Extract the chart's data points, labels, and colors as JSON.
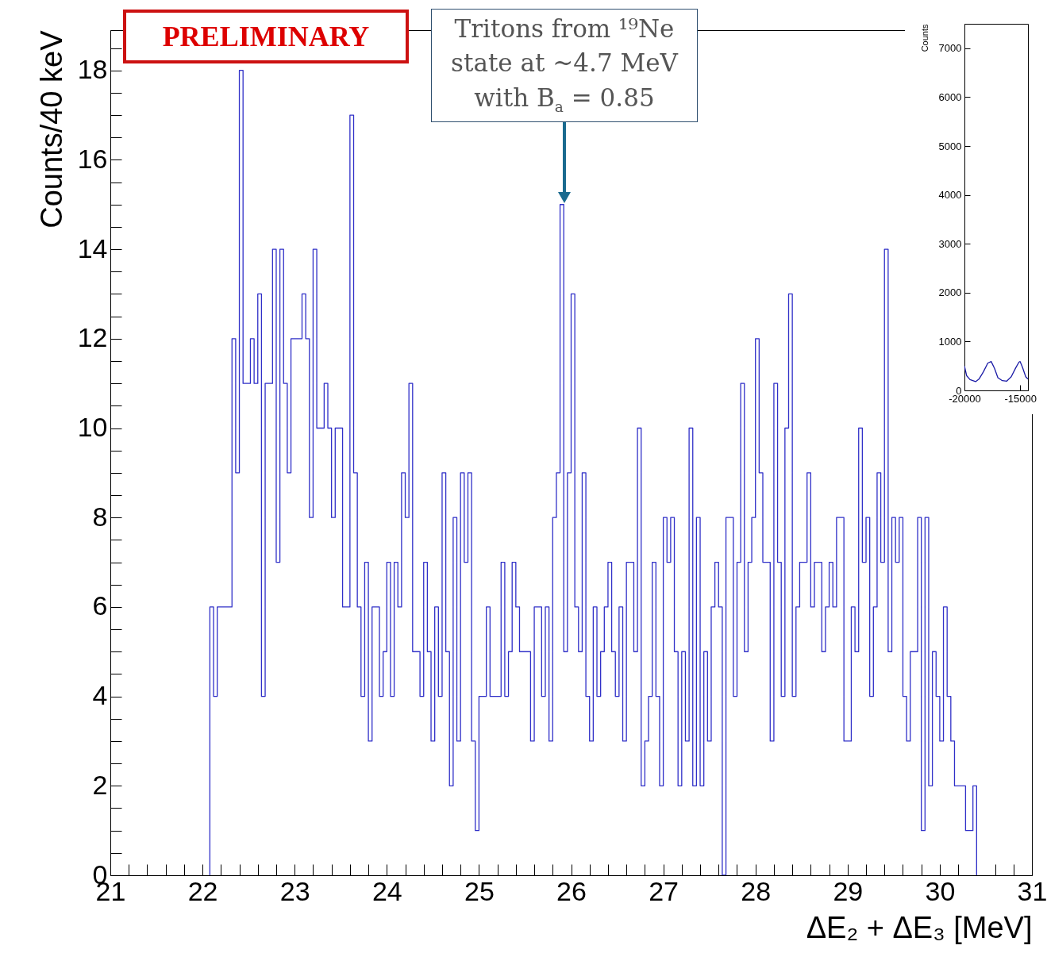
{
  "chart_data": [
    {
      "type": "histogram",
      "color": "#3030c8",
      "xlabel": "ΔE₂ + ΔE₃ [MeV]",
      "ylabel": "Counts/40 keV",
      "bins": [
        22.08,
        22.12,
        22.16,
        22.2,
        22.24,
        22.28,
        22.32,
        22.36,
        22.4,
        22.44,
        22.48,
        22.52,
        22.56,
        22.6,
        22.64,
        22.68,
        22.72,
        22.76,
        22.8,
        22.84,
        22.88,
        22.92,
        22.96,
        23,
        23.04,
        23.08,
        23.12,
        23.16,
        23.2,
        23.24,
        23.28,
        23.32,
        23.36,
        23.4,
        23.44,
        23.48,
        23.52,
        23.56,
        23.6,
        23.64,
        23.68,
        23.72,
        23.76,
        23.8,
        23.84,
        23.88,
        23.92,
        23.96,
        24,
        24.04,
        24.08,
        24.12,
        24.16,
        24.2,
        24.24,
        24.28,
        24.32,
        24.36,
        24.4,
        24.44,
        24.48,
        24.52,
        24.56,
        24.6,
        24.64,
        24.68,
        24.72,
        24.76,
        24.8,
        24.84,
        24.88,
        24.92,
        24.96,
        25,
        25.04,
        25.08,
        25.12,
        25.16,
        25.2,
        25.24,
        25.28,
        25.32,
        25.36,
        25.4,
        25.44,
        25.48,
        25.52,
        25.56,
        25.6,
        25.64,
        25.68,
        25.72,
        25.76,
        25.8,
        25.84,
        25.88,
        25.92,
        25.96,
        26,
        26.04,
        26.08,
        26.12,
        26.16,
        26.2,
        26.24,
        26.28,
        26.32,
        26.36,
        26.4,
        26.44,
        26.48,
        26.52,
        26.56,
        26.6,
        26.64,
        26.68,
        26.72,
        26.76,
        26.8,
        26.84,
        26.88,
        26.92,
        26.96,
        27,
        27.04,
        27.08,
        27.12,
        27.16,
        27.2,
        27.24,
        27.28,
        27.32,
        27.36,
        27.4,
        27.44,
        27.48,
        27.52,
        27.56,
        27.6,
        27.64,
        27.68,
        27.72,
        27.76,
        27.8,
        27.84,
        27.88,
        27.92,
        27.96,
        28,
        28.04,
        28.08,
        28.12,
        28.16,
        28.2,
        28.24,
        28.28,
        28.32,
        28.36,
        28.4,
        28.44,
        28.48,
        28.52,
        28.56,
        28.6,
        28.64,
        28.68,
        28.72,
        28.76,
        28.8,
        28.84,
        28.88,
        28.92,
        28.96,
        29,
        29.04,
        29.08,
        29.12,
        29.16,
        29.2,
        29.24,
        29.28,
        29.32,
        29.36,
        29.4,
        29.44,
        29.48,
        29.52,
        29.56,
        29.6,
        29.64,
        29.68,
        29.72,
        29.76,
        29.8,
        29.84,
        29.88,
        29.92,
        29.96,
        30,
        30.04,
        30.08,
        30.12,
        30.16,
        30.2,
        30.24,
        30.28,
        30.32,
        30.36,
        30.4
      ],
      "values": [
        6,
        4,
        6,
        6,
        6,
        6,
        12,
        9,
        18,
        11,
        11,
        12,
        11,
        13,
        4,
        11,
        11,
        14,
        7,
        14,
        11,
        9,
        12,
        12,
        12,
        13,
        12,
        8,
        14,
        10,
        10,
        11,
        10,
        8,
        10,
        10,
        6,
        6,
        17,
        9,
        6,
        4,
        7,
        3,
        6,
        6,
        4,
        5,
        7,
        4,
        7,
        6,
        9,
        8,
        11,
        5,
        5,
        4,
        7,
        5,
        3,
        6,
        4,
        9,
        5,
        2,
        8,
        3,
        9,
        7,
        9,
        3,
        1,
        4,
        4,
        6,
        4,
        4,
        4,
        7,
        4,
        5,
        7,
        6,
        5,
        5,
        5,
        3,
        6,
        6,
        4,
        6,
        3,
        8,
        9,
        15,
        5,
        9,
        13,
        6,
        5,
        9,
        4,
        3,
        6,
        4,
        5,
        6,
        7,
        5,
        4,
        6,
        3,
        7,
        7,
        5,
        10,
        2,
        3,
        4,
        7,
        4,
        2,
        8,
        7,
        8,
        5,
        2,
        5,
        3,
        10,
        2,
        8,
        2,
        5,
        3,
        6,
        7,
        6,
        0,
        8,
        8,
        4,
        7,
        11,
        5,
        7,
        8,
        12,
        9,
        7,
        7,
        3,
        11,
        7,
        4,
        10,
        13,
        4,
        6,
        7,
        7,
        9,
        6,
        7,
        7,
        5,
        6,
        7,
        6,
        8,
        8,
        3,
        3,
        6,
        5,
        10,
        7,
        8,
        4,
        6,
        9,
        7,
        14,
        5,
        8,
        7,
        8,
        4,
        3,
        5,
        5,
        8,
        1,
        8,
        2,
        5,
        4,
        3,
        6,
        4,
        3,
        2,
        2,
        2,
        1,
        1,
        2
      ],
      "xlim": [
        21,
        31
      ],
      "xticks": [
        21,
        {
          "value": 21.2,
          "label": null
        },
        {
          "value": 21.4,
          "label": null
        },
        {
          "value": 21.6,
          "label": null
        },
        {
          "value": 21.8,
          "label": null
        },
        22,
        {
          "value": 22.2,
          "label": null
        },
        {
          "value": 22.4,
          "label": null
        },
        {
          "value": 22.6,
          "label": null
        },
        {
          "value": 22.8,
          "label": null
        },
        23,
        {
          "value": 23.2,
          "label": null
        },
        {
          "value": 23.4,
          "label": null
        },
        {
          "value": 23.6,
          "label": null
        },
        {
          "value": 23.8,
          "label": null
        },
        24,
        {
          "value": 24.2,
          "label": null
        },
        {
          "value": 24.4,
          "label": null
        },
        {
          "value": 24.6,
          "label": null
        },
        {
          "value": 24.8,
          "label": null
        },
        25,
        {
          "value": 25.2,
          "label": null
        },
        {
          "value": 25.4,
          "label": null
        },
        {
          "value": 25.6,
          "label": null
        },
        {
          "value": 25.8,
          "label": null
        },
        26,
        {
          "value": 26.2,
          "label": null
        },
        {
          "value": 26.4,
          "label": null
        },
        {
          "value": 26.6,
          "label": null
        },
        {
          "value": 26.8,
          "label": null
        },
        27,
        {
          "value": 27.2,
          "label": null
        },
        {
          "value": 27.4,
          "label": null
        },
        {
          "value": 27.6,
          "label": null
        },
        {
          "value": 27.8,
          "label": null
        },
        28,
        {
          "value": 28.2,
          "label": null
        },
        {
          "value": 28.4,
          "label": null
        },
        {
          "value": 28.6,
          "label": null
        },
        {
          "value": 28.8,
          "label": null
        },
        29,
        {
          "value": 29.2,
          "label": null
        },
        {
          "value": 29.4,
          "label": null
        },
        {
          "value": 29.6,
          "label": null
        },
        {
          "value": 29.8,
          "label": null
        },
        30,
        {
          "value": 30.2,
          "label": null
        },
        {
          "value": 30.4,
          "label": null
        },
        {
          "value": 30.6,
          "label": null
        },
        {
          "value": 30.8,
          "label": null
        },
        31
      ],
      "ylim": [
        0,
        18.9
      ],
      "yticks": [
        0,
        {
          "value": 0.5,
          "label": null
        },
        {
          "value": 1,
          "label": null
        },
        {
          "value": 1.5,
          "label": null
        },
        2,
        {
          "value": 2.5,
          "label": null
        },
        {
          "value": 3,
          "label": null
        },
        {
          "value": 3.5,
          "label": null
        },
        4,
        {
          "value": 4.5,
          "label": null
        },
        {
          "value": 5,
          "label": null
        },
        {
          "value": 5.5,
          "label": null
        },
        6,
        {
          "value": 6.5,
          "label": null
        },
        {
          "value": 7,
          "label": null
        },
        {
          "value": 7.5,
          "label": null
        },
        8,
        {
          "value": 8.5,
          "label": null
        },
        {
          "value": 9,
          "label": null
        },
        {
          "value": 9.5,
          "label": null
        },
        10,
        {
          "value": 10.5,
          "label": null
        },
        {
          "value": 11,
          "label": null
        },
        {
          "value": 11.5,
          "label": null
        },
        12,
        {
          "value": 12.5,
          "label": null
        },
        {
          "value": 13,
          "label": null
        },
        {
          "value": 13.5,
          "label": null
        },
        14,
        {
          "value": 14.5,
          "label": null
        },
        {
          "value": 15,
          "label": null
        },
        {
          "value": 15.5,
          "label": null
        },
        16,
        {
          "value": 16.5,
          "label": null
        },
        {
          "value": 17,
          "label": null
        },
        {
          "value": 17.5,
          "label": null
        },
        18,
        {
          "value": 18.5,
          "label": null
        }
      ],
      "annotations": [
        "PRELIMINARY",
        "Tritons from ¹⁹Ne state at ~4.7 MeV with B$_{a}$ = 0.85"
      ]
    },
    {
      "type": "line",
      "color": "#1a1aa6",
      "ylabel": "Counts",
      "x": [
        -20000,
        -19800,
        -19500,
        -19000,
        -18700,
        -18300,
        -17900,
        -17600,
        -17300,
        -17000,
        -16600,
        -16200,
        -15800,
        -15400,
        -15100,
        -15000,
        -14800,
        -14500,
        -14300
      ],
      "values": [
        500,
        300,
        220,
        180,
        230,
        380,
        560,
        590,
        450,
        260,
        200,
        190,
        280,
        460,
        580,
        590,
        480,
        280,
        230
      ],
      "xlim": [
        -20000,
        -14300
      ],
      "xticks": [
        -20000,
        -15000
      ],
      "ylim": [
        0,
        7500
      ],
      "yticks": [
        0,
        1000,
        2000,
        3000,
        4000,
        5000,
        6000,
        7000
      ]
    }
  ]
}
